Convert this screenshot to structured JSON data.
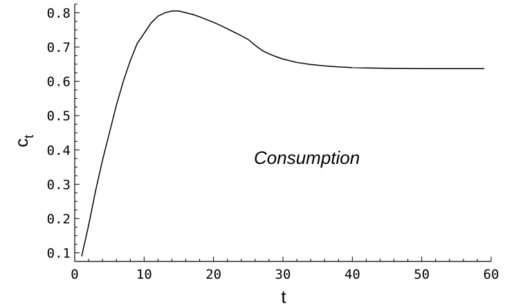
{
  "chart_data": {
    "type": "line",
    "title": "",
    "xlabel": "t",
    "ylabel_main": "c",
    "ylabel_sub": "t",
    "annotation": "Consumption",
    "xlim": [
      0,
      60
    ],
    "ylim": [
      0.075,
      0.825
    ],
    "x_ticks": [
      0,
      10,
      20,
      30,
      40,
      50,
      60
    ],
    "x_tick_labels": [
      "0",
      "10",
      "20",
      "30",
      "40",
      "50",
      "60"
    ],
    "y_ticks": [
      0.1,
      0.2,
      0.3,
      0.4,
      0.5,
      0.6,
      0.7,
      0.8
    ],
    "y_tick_labels": [
      "0.1",
      "0.2",
      "0.3",
      "0.4",
      "0.5",
      "0.6",
      "0.7",
      "0.8"
    ],
    "grid": false,
    "series": [
      {
        "x": [
          1,
          2,
          3,
          4,
          5,
          6,
          7,
          8,
          9,
          10,
          11,
          12,
          13,
          14,
          15,
          16,
          17,
          18,
          19,
          20,
          21,
          22,
          23,
          24,
          25,
          26,
          27,
          28,
          29,
          30,
          32,
          34,
          36,
          38,
          40,
          42,
          45,
          50,
          55,
          59
        ],
        "y": [
          0.09,
          0.18,
          0.28,
          0.37,
          0.45,
          0.53,
          0.6,
          0.66,
          0.71,
          0.74,
          0.77,
          0.79,
          0.8,
          0.805,
          0.805,
          0.8,
          0.795,
          0.788,
          0.78,
          0.772,
          0.763,
          0.753,
          0.743,
          0.733,
          0.722,
          0.705,
          0.69,
          0.68,
          0.672,
          0.665,
          0.655,
          0.649,
          0.645,
          0.642,
          0.64,
          0.639,
          0.638,
          0.637,
          0.637,
          0.637
        ]
      }
    ]
  }
}
